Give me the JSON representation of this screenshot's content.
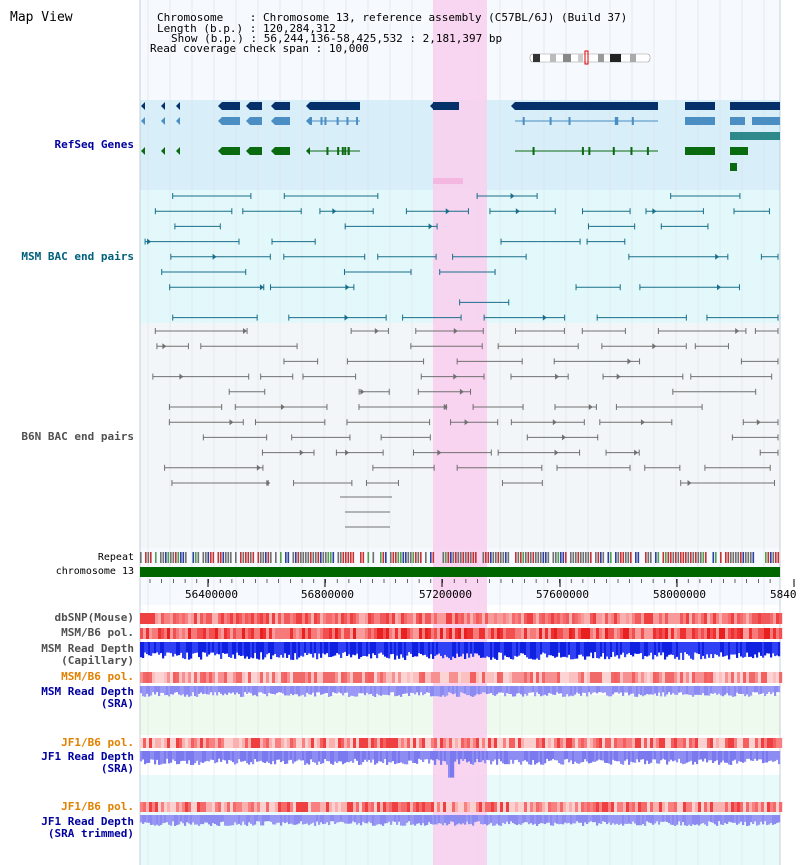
{
  "title": "Map View",
  "info": {
    "chromosome_key": "Chromosome",
    "chromosome_val": "Chromosome 13, reference assembly (C57BL/6J) (Build 37)",
    "length_key": "Length (b.p.)",
    "length_val": "120,284,312",
    "show_key": "Show (b.p.)",
    "show_val": "56,244,136-58,425,532 : 2,181,397 bp",
    "coverage_key": "Read coverage check span",
    "coverage_val": "10,000"
  },
  "tracks": {
    "refseq": "RefSeq Genes",
    "msm_bac": "MSM BAC end pairs",
    "b6n_bac": "B6N BAC end pairs",
    "repeat": "Repeat",
    "chromosome": "chromosome 13",
    "dbsnp": "dbSNP(Mouse)",
    "msm_pol": "MSM/B6 pol.",
    "msm_depth_cap_1": "MSM Read Depth",
    "msm_depth_cap_2": "(Capillary)",
    "msm_pol_2": "MSM/B6 pol.",
    "msm_depth_sra_1": "MSM Read Depth",
    "msm_depth_sra_2": "(SRA)",
    "jf1_pol": "JF1/B6 pol.",
    "jf1_depth_1": "JF1 Read Depth",
    "jf1_depth_2": "(SRA)",
    "jf1_pol_2": "JF1/B6 pol.",
    "jf1_trim_1": "JF1 Read Depth",
    "jf1_trim_2": "(SRA trimmed)"
  },
  "ruler": {
    "ticks": [
      "56400000",
      "56800000",
      "57200000",
      "57600000",
      "58000000",
      "5840"
    ]
  },
  "colors": {
    "highlight": "#f8d0ee",
    "refseq_bg": "#d8eef8",
    "msm_bg": "#e0f8fa",
    "gene_navy": "#06306a",
    "gene_light": "#4a8ec4",
    "gene_teal": "#2e8a8a",
    "gene_green": "#0a6a10",
    "chrom_green": "#006600"
  }
}
